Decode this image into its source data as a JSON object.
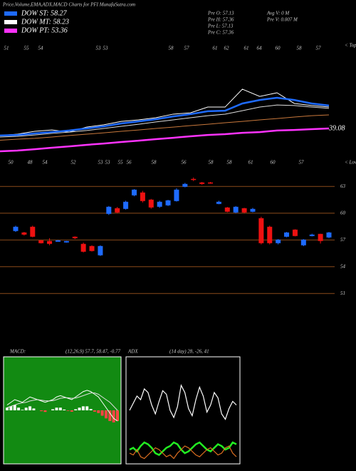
{
  "header": {
    "title": "Price,Volume,EMA,ADX,MACD Charts for PFI MunafaSutra.com",
    "legend": [
      {
        "text": "DOW ST: 58.27",
        "color": "#1e6bff"
      },
      {
        "text": "DOW MT: 58.23",
        "color": "#ffffff"
      },
      {
        "text": "DOW PT: 53.36",
        "color": "#ff33ff"
      }
    ],
    "stats": [
      "Pre  O: 57.13",
      "Pre  H: 57.36",
      "Pre  L: 57.13",
      "Pre  C: 57.36",
      "Avg V: 0  M",
      "Pre  V: 0.007 M"
    ]
  },
  "chart_data": [
    {
      "type": "line",
      "top_label": "< Top",
      "low_label": "< Low",
      "annotation": "39.08",
      "high_labels": [
        51,
        55,
        54,
        53,
        53,
        58,
        57,
        61,
        62,
        61,
        64,
        60,
        58,
        57
      ],
      "low_labels": [
        50,
        48,
        54,
        52,
        53,
        53,
        55,
        56,
        58,
        56,
        58,
        58,
        61,
        60,
        57
      ],
      "ylim": [
        20,
        75
      ],
      "series": [
        {
          "color": "#ffffff",
          "width": 1,
          "values": [
            29.4,
            30.1,
            31.6,
            32.3,
            31.2,
            33.8,
            35.0,
            36.8,
            37.6,
            38.7,
            40.6,
            41.3,
            44.3,
            44.3,
            53.7,
            49.9,
            51.8,
            46.2,
            45.1,
            44.3
          ]
        },
        {
          "color": "#1e6bff",
          "width": 2.5,
          "values": [
            29.4,
            29.7,
            30.5,
            31.2,
            32.0,
            33.1,
            34.2,
            35.7,
            36.8,
            37.9,
            39.4,
            40.6,
            42.1,
            42.4,
            46.2,
            48.0,
            49.2,
            48.0,
            46.2,
            45.1
          ]
        },
        {
          "color": "#dddddd",
          "width": 1,
          "values": [
            28.6,
            29.0,
            29.7,
            30.5,
            31.2,
            32.0,
            33.1,
            34.2,
            35.3,
            36.5,
            37.6,
            38.7,
            39.8,
            40.6,
            42.4,
            44.3,
            45.4,
            45.1,
            44.3,
            43.6
          ]
        },
        {
          "color": "#c8783c",
          "width": 1,
          "values": [
            26.9,
            27.5,
            27.9,
            28.6,
            29.4,
            30.1,
            30.8,
            31.6,
            32.3,
            33.1,
            33.8,
            34.6,
            35.3,
            36.1,
            36.8,
            37.6,
            38.3,
            39.1,
            39.8,
            40.2
          ]
        },
        {
          "color": "#ff33ff",
          "width": 2.5,
          "values": [
            21.1,
            21.5,
            22.2,
            23.0,
            23.7,
            24.5,
            25.2,
            26.0,
            26.7,
            27.5,
            28.2,
            29.0,
            29.7,
            30.1,
            30.8,
            31.2,
            32.0,
            32.3,
            32.7,
            33.1
          ]
        }
      ]
    },
    {
      "type": "candlestick",
      "ylim": [
        50.7,
        64.3
      ],
      "yticks": [
        51,
        54,
        57,
        60,
        63
      ],
      "grid": true,
      "up_color": "#1e6bff",
      "down_color": "#ee1111",
      "open": [
        58.0,
        57.84,
        58.48,
        56.96,
        56.88,
        56.8,
        56.72,
        57.36,
        56.56,
        56.32,
        55.28,
        59.92,
        60.56,
        60.48,
        62.0,
        62.32,
        61.52,
        60.72,
        60.88,
        61.36,
        62.96,
        63.84,
        63.44,
        63.44,
        61.04,
        60.64,
        60.08,
        60.56,
        60.16,
        59.44,
        58.48,
        56.64,
        57.36,
        58.16,
        56.4,
        57.44,
        57.68,
        57.28
      ],
      "high": [
        58.6,
        57.9,
        58.6,
        57.0,
        57.2,
        57.0,
        56.9,
        57.4,
        56.7,
        56.4,
        56.4,
        60.8,
        60.7,
        61.4,
        62.7,
        62.5,
        61.6,
        61.4,
        61.5,
        62.8,
        63.4,
        64.0,
        63.5,
        63.5,
        61.4,
        60.7,
        60.8,
        60.6,
        60.6,
        59.6,
        58.6,
        57.1,
        57.9,
        58.2,
        57.1,
        57.7,
        57.7,
        57.9
      ],
      "low": [
        57.9,
        57.5,
        57.3,
        56.6,
        56.4,
        56.8,
        56.7,
        57.1,
        55.6,
        55.7,
        55.2,
        59.8,
        60.0,
        60.4,
        61.9,
        61.2,
        60.5,
        60.6,
        60.8,
        61.3,
        62.9,
        63.6,
        63.2,
        63.3,
        61.0,
        60.1,
        60.0,
        60.0,
        60.1,
        56.5,
        56.5,
        56.5,
        57.3,
        57.4,
        56.3,
        57.4,
        56.6,
        57.2
      ],
      "close": [
        58.48,
        57.6,
        57.36,
        56.64,
        56.56,
        56.96,
        56.88,
        57.2,
        55.68,
        55.76,
        56.32,
        60.72,
        60.08,
        61.28,
        62.64,
        61.36,
        60.64,
        61.28,
        61.44,
        62.64,
        63.28,
        63.76,
        63.28,
        63.36,
        61.28,
        60.16,
        60.72,
        60.08,
        60.48,
        56.64,
        56.64,
        57.04,
        57.84,
        57.44,
        57.04,
        57.6,
        56.88,
        57.84
      ]
    },
    {
      "type": "macd",
      "label": "MACD:",
      "params": "(12,26,9) 57.7, 58.47, -0.77",
      "ylim": [
        -2,
        2
      ],
      "background": "#128a12",
      "macd": [
        0.2,
        0.3,
        0.4,
        0.35,
        0.3,
        0.4,
        0.5,
        0.45,
        0.4,
        0.35,
        0.3,
        0.35,
        0.4,
        0.5,
        0.55,
        0.5,
        0.45,
        0.4,
        0.5,
        0.6,
        0.7,
        0.75,
        0.7,
        0.6,
        0.5,
        0.3,
        0.1,
        -0.1,
        -0.3,
        -0.4
      ],
      "signal": [
        0.1,
        0.15,
        0.2,
        0.25,
        0.28,
        0.3,
        0.35,
        0.38,
        0.4,
        0.38,
        0.36,
        0.35,
        0.36,
        0.4,
        0.45,
        0.47,
        0.47,
        0.45,
        0.46,
        0.5,
        0.55,
        0.6,
        0.65,
        0.65,
        0.6,
        0.5,
        0.4,
        0.3,
        0.15,
        0.0
      ],
      "histogram": [
        0.1,
        0.15,
        0.2,
        0.1,
        0.02,
        0.1,
        0.15,
        0.07,
        0,
        -0.03,
        -0.06,
        0,
        0.04,
        0.1,
        0.1,
        0.03,
        -0.02,
        -0.05,
        0.04,
        0.1,
        0.15,
        0.15,
        0.05,
        -0.05,
        -0.1,
        -0.2,
        -0.3,
        -0.4,
        -0.45,
        -0.4
      ]
    },
    {
      "type": "adx",
      "label": "ADX",
      "params": "(14 day) 28, -26, 41",
      "ylim": [
        0,
        60
      ],
      "series": [
        {
          "color": "#ffffff",
          "values": [
            30,
            34,
            38,
            36,
            42,
            40,
            33,
            28,
            35,
            41,
            39,
            30,
            26,
            32,
            44,
            40,
            31,
            27,
            36,
            43,
            38,
            29,
            33,
            40,
            37,
            28,
            25,
            31,
            35,
            33
          ]
        },
        {
          "color": "#22ee22",
          "values": [
            8,
            9,
            7,
            10,
            12,
            11,
            9,
            6,
            5,
            7,
            9,
            10,
            12,
            11,
            8,
            6,
            7,
            9,
            11,
            12,
            10,
            8,
            7,
            9,
            11,
            10,
            8,
            9,
            12,
            11
          ]
        },
        {
          "color": "#e07020",
          "values": [
            6,
            5,
            8,
            4,
            3,
            5,
            7,
            9,
            8,
            6,
            4,
            5,
            3,
            6,
            8,
            10,
            9,
            7,
            5,
            4,
            6,
            8,
            9,
            7,
            5,
            6,
            9,
            10,
            6,
            4
          ]
        }
      ]
    }
  ]
}
